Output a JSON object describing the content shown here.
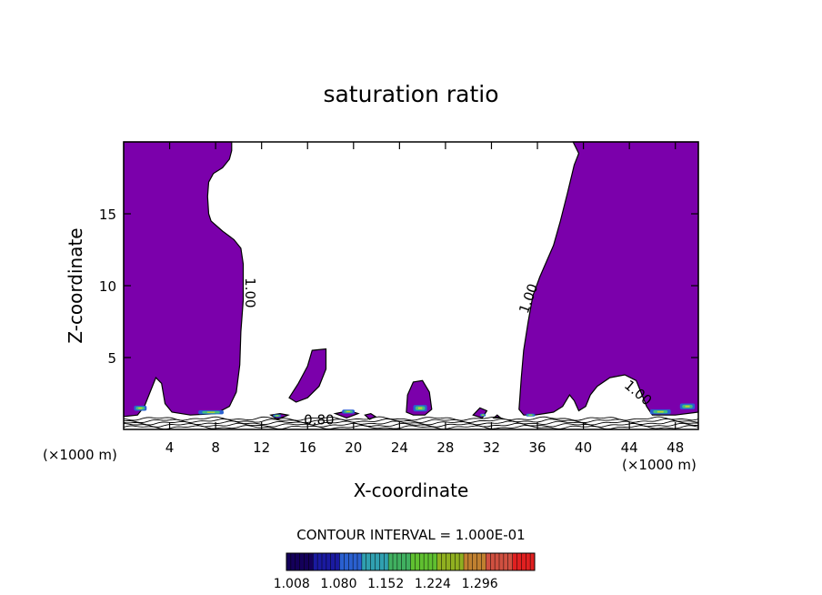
{
  "chart_data": {
    "type": "heatmap",
    "title": "saturation ratio",
    "xlabel": "X-coordinate",
    "ylabel": "Z-coordinate",
    "x_unit": "(×1000 m)",
    "x_unit_right": "(×1000 m)",
    "xlim": [
      0,
      50
    ],
    "ylim": [
      0,
      20
    ],
    "xticks": [
      4,
      8,
      12,
      16,
      20,
      24,
      28,
      32,
      36,
      40,
      44,
      48
    ],
    "yticks": [
      5,
      10,
      15
    ],
    "fill_color": "#7b00ab",
    "contour_labels": [
      {
        "text": "1.00",
        "x": 10.6,
        "y": 9.5,
        "rotate": 90
      },
      {
        "text": "1.00",
        "x": 35.6,
        "y": 9.0,
        "rotate": -70
      },
      {
        "text": "1.00",
        "x": 44.5,
        "y": 2.3,
        "rotate": 40
      },
      {
        "text": "0.80",
        "x": 17.0,
        "y": 0.35,
        "rotate": 0
      }
    ],
    "regions": [
      {
        "name": "left-moist-column",
        "points": [
          [
            0,
            20
          ],
          [
            9.4,
            20
          ],
          [
            9.4,
            19.4
          ],
          [
            9.2,
            18.8
          ],
          [
            8.6,
            18.2
          ],
          [
            7.8,
            17.8
          ],
          [
            7.4,
            17.2
          ],
          [
            7.3,
            16.2
          ],
          [
            7.4,
            15.0
          ],
          [
            7.6,
            14.5
          ],
          [
            8.6,
            13.8
          ],
          [
            9.6,
            13.2
          ],
          [
            10.2,
            12.6
          ],
          [
            10.4,
            11.5
          ],
          [
            10.4,
            9.0
          ],
          [
            10.2,
            6.8
          ],
          [
            10.1,
            4.5
          ],
          [
            9.8,
            2.6
          ],
          [
            9.2,
            1.6
          ],
          [
            8.0,
            1.1
          ],
          [
            5.8,
            1.0
          ],
          [
            4.2,
            1.2
          ],
          [
            3.6,
            1.8
          ],
          [
            3.3,
            3.2
          ],
          [
            2.8,
            3.6
          ],
          [
            2.3,
            2.6
          ],
          [
            1.8,
            1.6
          ],
          [
            1.2,
            1.0
          ],
          [
            0,
            0.9
          ]
        ]
      },
      {
        "name": "right-moist-column",
        "points": [
          [
            39.1,
            20
          ],
          [
            50,
            20
          ],
          [
            50,
            1.2
          ],
          [
            48.0,
            1.0
          ],
          [
            46.0,
            1.0
          ],
          [
            45.5,
            1.6
          ],
          [
            45.0,
            2.6
          ],
          [
            44.6,
            3.4
          ],
          [
            43.6,
            3.8
          ],
          [
            42.3,
            3.6
          ],
          [
            41.2,
            3.0
          ],
          [
            40.6,
            2.4
          ],
          [
            40.2,
            1.6
          ],
          [
            39.6,
            1.3
          ],
          [
            39.2,
            2.0
          ],
          [
            38.8,
            2.4
          ],
          [
            38.2,
            1.6
          ],
          [
            37.4,
            1.2
          ],
          [
            36.6,
            1.1
          ],
          [
            35.8,
            1.0
          ],
          [
            34.8,
            1.0
          ],
          [
            34.4,
            1.4
          ],
          [
            34.6,
            3.6
          ],
          [
            34.8,
            5.5
          ],
          [
            35.2,
            7.5
          ],
          [
            35.6,
            9.3
          ],
          [
            36.2,
            10.6
          ],
          [
            37.4,
            12.8
          ],
          [
            38.0,
            14.5
          ],
          [
            38.6,
            16.4
          ],
          [
            39.2,
            18.4
          ],
          [
            39.6,
            19.2
          ]
        ]
      },
      {
        "name": "small-cell-16",
        "points": [
          [
            14.4,
            2.2
          ],
          [
            15.2,
            3.2
          ],
          [
            16.0,
            4.4
          ],
          [
            16.4,
            5.5
          ],
          [
            17.6,
            5.6
          ],
          [
            17.6,
            4.2
          ],
          [
            17.0,
            3.0
          ],
          [
            16.0,
            2.2
          ],
          [
            15.0,
            1.9
          ]
        ]
      },
      {
        "name": "small-cell-25",
        "points": [
          [
            24.6,
            1.2
          ],
          [
            24.7,
            2.4
          ],
          [
            25.2,
            3.3
          ],
          [
            26.0,
            3.4
          ],
          [
            26.6,
            2.6
          ],
          [
            26.8,
            1.4
          ],
          [
            26.2,
            1.0
          ],
          [
            25.2,
            1.0
          ]
        ]
      },
      {
        "name": "speck-12",
        "points": [
          [
            12.8,
            1.0
          ],
          [
            13.6,
            1.1
          ],
          [
            14.3,
            1.0
          ],
          [
            13.4,
            0.7
          ]
        ]
      },
      {
        "name": "speck-19",
        "points": [
          [
            18.4,
            1.1
          ],
          [
            19.6,
            1.3
          ],
          [
            20.4,
            1.1
          ],
          [
            19.4,
            0.8
          ]
        ]
      },
      {
        "name": "speck-21",
        "points": [
          [
            21.0,
            1.0
          ],
          [
            21.5,
            1.1
          ],
          [
            21.9,
            0.9
          ],
          [
            21.4,
            0.7
          ]
        ]
      },
      {
        "name": "speck-31",
        "points": [
          [
            30.4,
            1.0
          ],
          [
            31.0,
            1.5
          ],
          [
            31.6,
            1.3
          ],
          [
            31.2,
            0.8
          ]
        ]
      },
      {
        "name": "speck-32",
        "points": [
          [
            32.2,
            0.8
          ],
          [
            32.5,
            1.0
          ],
          [
            32.8,
            0.8
          ]
        ]
      }
    ],
    "saturation_patches": [
      {
        "x": 0.9,
        "y": 1.3,
        "w": 1.1,
        "h": 0.35
      },
      {
        "x": 6.5,
        "y": 1.05,
        "w": 2.2,
        "h": 0.28
      },
      {
        "x": 13.0,
        "y": 0.85,
        "w": 0.7,
        "h": 0.2
      },
      {
        "x": 19.0,
        "y": 1.1,
        "w": 1.1,
        "h": 0.28
      },
      {
        "x": 25.2,
        "y": 1.25,
        "w": 1.2,
        "h": 0.45
      },
      {
        "x": 31.0,
        "y": 0.9,
        "w": 0.5,
        "h": 0.2
      },
      {
        "x": 35.0,
        "y": 0.9,
        "w": 0.8,
        "h": 0.2
      },
      {
        "x": 45.8,
        "y": 1.05,
        "w": 1.8,
        "h": 0.35
      },
      {
        "x": 48.4,
        "y": 1.4,
        "w": 1.3,
        "h": 0.4
      }
    ],
    "contour_interval_text": "CONTOUR INTERVAL = 1.000E-01",
    "colorbar": {
      "min": 1.0,
      "max": 1.38,
      "tick_values": [
        1.008,
        1.08,
        1.152,
        1.224,
        1.296
      ],
      "tick_labels": [
        "1.008",
        "1.080",
        "1.152",
        "1.224",
        "1.296"
      ],
      "colors": [
        "#14005a",
        "#1a1aa0",
        "#2a60d0",
        "#30a0b0",
        "#40b060",
        "#60c030",
        "#90b020",
        "#c08030",
        "#d05040",
        "#e02020"
      ]
    }
  }
}
